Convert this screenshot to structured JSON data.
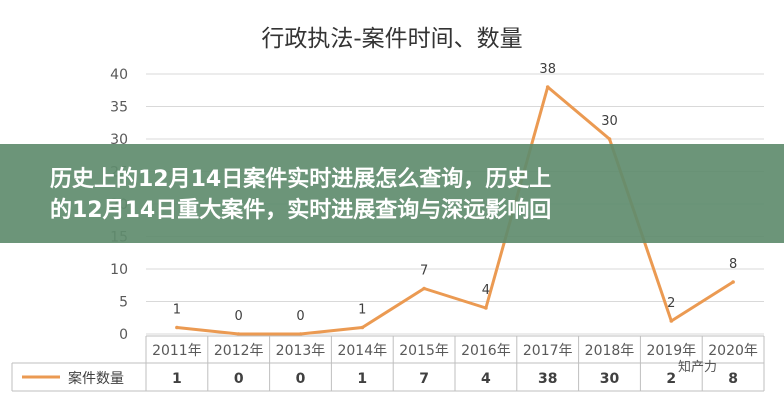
{
  "banner": {
    "line1": "历史上的12月14日案件实时进展怎么查询，历史上",
    "line2": "的12月14日重大案件，实时进展查询与深远影响回"
  },
  "watermark": "知产力",
  "chart_data": {
    "type": "line",
    "title": "行政执法-案件时间、数量",
    "categories": [
      "2011年",
      "2012年",
      "2013年",
      "2014年",
      "2015年",
      "2016年",
      "2017年",
      "2018年",
      "2019年",
      "2020年"
    ],
    "series": [
      {
        "name": "案件数量",
        "values": [
          1,
          0,
          0,
          1,
          7,
          4,
          38,
          30,
          2,
          8
        ],
        "color": "#eb9a52"
      }
    ],
    "ylim": [
      0,
      40
    ],
    "yticks": [
      0,
      5,
      10,
      15,
      20,
      25,
      30,
      35,
      40
    ],
    "grid": true,
    "legend": "bottom data table"
  }
}
